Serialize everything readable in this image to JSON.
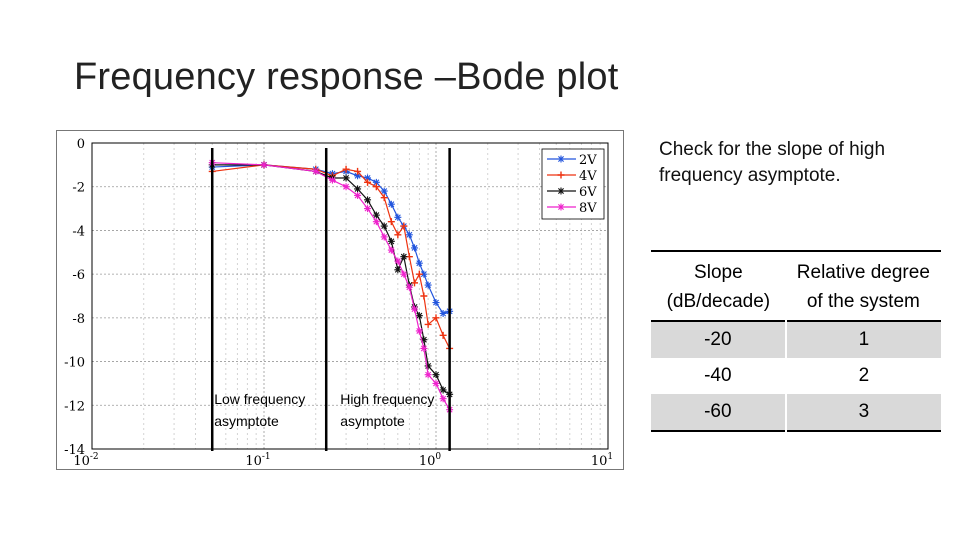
{
  "slide": {
    "title": "Frequency response –Bode plot",
    "note": "Check for the slope of high frequency asymptote."
  },
  "table": {
    "headers": [
      "Slope (dB/decade)",
      "Relative degree of the system"
    ],
    "rows": [
      [
        "-20",
        "1"
      ],
      [
        "-40",
        "2"
      ],
      [
        "-60",
        "3"
      ]
    ]
  },
  "chart_data": {
    "type": "line",
    "title": "",
    "xlabel": "",
    "ylabel": "",
    "xscale": "log",
    "xlim": [
      0.01,
      10
    ],
    "ylim": [
      -14,
      0
    ],
    "grid": true,
    "legend_position": "top-right",
    "x_ticks": [
      {
        "base": "10",
        "exp": "-2",
        "value": 0.01
      },
      {
        "base": "10",
        "exp": "-1",
        "value": 0.1
      },
      {
        "base": "10",
        "exp": "0",
        "value": 1
      },
      {
        "base": "10",
        "exp": "1",
        "value": 10
      }
    ],
    "y_ticks": [
      "0",
      "-2",
      "-4",
      "-6",
      "-8",
      "-10",
      "-12",
      "-14"
    ],
    "series": [
      {
        "name": "2V",
        "color": "#2255dd",
        "marker": "star",
        "x": [
          0.05,
          0.1,
          0.2,
          0.25,
          0.3,
          0.35,
          0.4,
          0.45,
          0.5,
          0.55,
          0.6,
          0.65,
          0.7,
          0.75,
          0.8,
          0.85,
          0.9,
          1.0,
          1.1,
          1.2
        ],
        "y": [
          -1.1,
          -1.0,
          -1.2,
          -1.4,
          -1.3,
          -1.5,
          -1.6,
          -1.8,
          -2.2,
          -2.8,
          -3.4,
          -3.8,
          -4.2,
          -4.8,
          -5.5,
          -6.0,
          -6.5,
          -7.3,
          -7.8,
          -7.7
        ]
      },
      {
        "name": "4V",
        "color": "#ee3311",
        "marker": "plus",
        "x": [
          0.05,
          0.1,
          0.2,
          0.25,
          0.3,
          0.35,
          0.4,
          0.45,
          0.5,
          0.55,
          0.6,
          0.65,
          0.7,
          0.75,
          0.8,
          0.85,
          0.9,
          1.0,
          1.1,
          1.2
        ],
        "y": [
          -1.3,
          -1.0,
          -1.2,
          -1.5,
          -1.2,
          -1.3,
          -1.8,
          -2.0,
          -2.5,
          -3.6,
          -4.2,
          -3.8,
          -5.2,
          -6.4,
          -6.0,
          -7.0,
          -8.3,
          -8.0,
          -8.8,
          -9.4
        ]
      },
      {
        "name": "6V",
        "color": "#111111",
        "marker": "star",
        "x": [
          0.05,
          0.1,
          0.2,
          0.25,
          0.3,
          0.35,
          0.4,
          0.45,
          0.5,
          0.55,
          0.6,
          0.65,
          0.7,
          0.75,
          0.8,
          0.85,
          0.9,
          1.0,
          1.1,
          1.2
        ],
        "y": [
          -1.0,
          -1.0,
          -1.3,
          -1.6,
          -1.6,
          -2.1,
          -2.6,
          -3.3,
          -3.8,
          -4.5,
          -5.8,
          -5.2,
          -6.5,
          -7.5,
          -7.9,
          -9.0,
          -10.2,
          -10.6,
          -11.3,
          -11.5
        ]
      },
      {
        "name": "8V",
        "color": "#ee22cc",
        "marker": "star",
        "x": [
          0.05,
          0.1,
          0.2,
          0.25,
          0.3,
          0.35,
          0.4,
          0.45,
          0.5,
          0.55,
          0.6,
          0.65,
          0.7,
          0.75,
          0.8,
          0.85,
          0.9,
          1.0,
          1.1,
          1.2
        ],
        "y": [
          -0.9,
          -1.0,
          -1.3,
          -1.7,
          -2.0,
          -2.4,
          -3.0,
          -3.6,
          -4.3,
          -4.9,
          -5.4,
          -6.0,
          -6.6,
          -7.6,
          -8.6,
          -9.4,
          -10.6,
          -11.0,
          -11.7,
          -12.2
        ]
      }
    ],
    "vertical_lines": [
      0.05,
      0.23,
      1.2
    ],
    "annotations": [
      {
        "name": "low-frequency-asymptote-label",
        "lines": [
          "Low frequency",
          "asymptote"
        ]
      },
      {
        "name": "high-frequency-asymptote-label",
        "lines": [
          "High frequency",
          "asymptote"
        ]
      }
    ]
  }
}
